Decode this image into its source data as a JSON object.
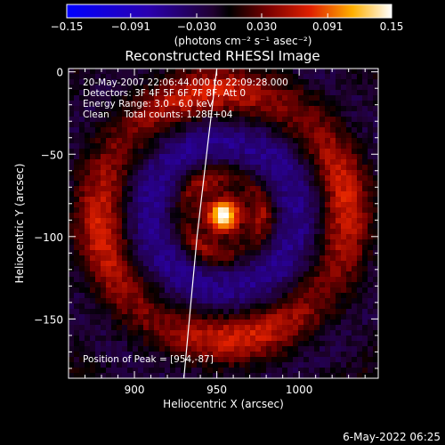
{
  "chart_data": {
    "type": "heatmap",
    "title": "Reconstructed RHESSI Image",
    "xlabel": "Heliocentric X (arcsec)",
    "ylabel": "Heliocentric Y (arcsec)",
    "xlim": [
      860,
      1048
    ],
    "ylim": [
      -186,
      2
    ],
    "x_ticks": [
      900,
      950,
      1000
    ],
    "y_ticks": [
      0,
      -50,
      -100,
      -150
    ],
    "colorbar": {
      "ticks": [
        "-0.15",
        "-0.091",
        "-0.030",
        "0.030",
        "0.091",
        "0.15"
      ],
      "range": [
        -0.15,
        0.15
      ],
      "unit_label": "(photons cm⁻² s⁻¹ asec⁻²)"
    },
    "annotations": [
      "20-May-2007 22:06:44.000 to 22:09:28.000",
      "Detectors: 3F 4F 5F 6F 7F 8F, Att 0",
      "Energy Range: 3.0 - 6.0 keV",
      "Clean     Total counts: 1.28E+04"
    ],
    "peak_label": "Position of Peak = [954,-87]",
    "peak": {
      "x": 954,
      "y": -87,
      "value": 0.15
    },
    "ring_radius_arcsec": 75,
    "limb_line": [
      [
        950,
        2
      ],
      [
        945,
        -40
      ],
      [
        938,
        -100
      ],
      [
        930,
        -186
      ]
    ],
    "timestamp": "6-May-2022 06:25"
  }
}
